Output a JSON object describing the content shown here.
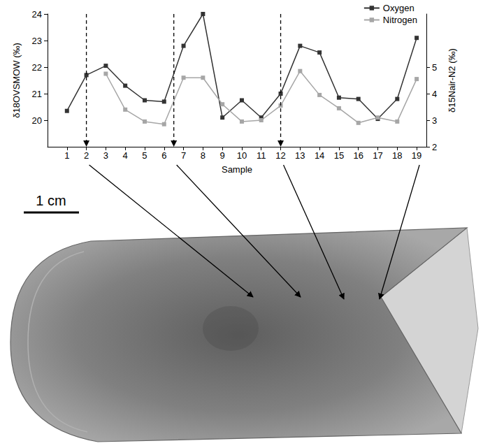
{
  "chart_data": {
    "type": "line",
    "x_label": "Sample",
    "y_label": "δ18OVSMOW (‰)",
    "y2_label": "δ15Nair-N2 (‰)",
    "x": [
      1,
      2,
      3,
      4,
      5,
      6,
      7,
      8,
      9,
      10,
      11,
      12,
      13,
      14,
      15,
      16,
      17,
      18,
      19
    ],
    "series": [
      {
        "name": "Oxygen",
        "color": "#333333",
        "marker": "square",
        "values": [
          20.35,
          21.7,
          22.05,
          21.3,
          20.75,
          20.7,
          22.8,
          24.0,
          20.1,
          20.75,
          20.1,
          21.0,
          22.8,
          22.55,
          20.85,
          20.8,
          20.05,
          20.8,
          23.1
        ]
      },
      {
        "name": "Nitrogen",
        "color": "#a6a6a6",
        "marker": "square",
        "axis": "y2",
        "values": [
          null,
          null,
          4.75,
          3.4,
          2.95,
          2.85,
          4.6,
          4.6,
          3.6,
          2.95,
          3.0,
          3.55,
          4.85,
          3.95,
          3.45,
          2.9,
          3.1,
          2.95,
          4.55
        ]
      }
    ],
    "xlim": [
      0,
      19.5
    ],
    "xticks": [
      1,
      2,
      3,
      4,
      5,
      6,
      7,
      8,
      9,
      10,
      11,
      12,
      13,
      14,
      15,
      16,
      17,
      18,
      19
    ],
    "ylim": [
      19,
      24
    ],
    "yticks": [
      20,
      21,
      22,
      23,
      24
    ],
    "y2lim": [
      2,
      7
    ],
    "y2ticks": [
      2,
      3,
      4,
      5
    ],
    "legend": "upper right",
    "grid": false,
    "dashed_lines": [
      2,
      6.5,
      12
    ]
  },
  "scale_bar": {
    "label": "1 cm"
  },
  "photo_arrows_from": [
    2,
    6.5,
    12,
    19
  ]
}
